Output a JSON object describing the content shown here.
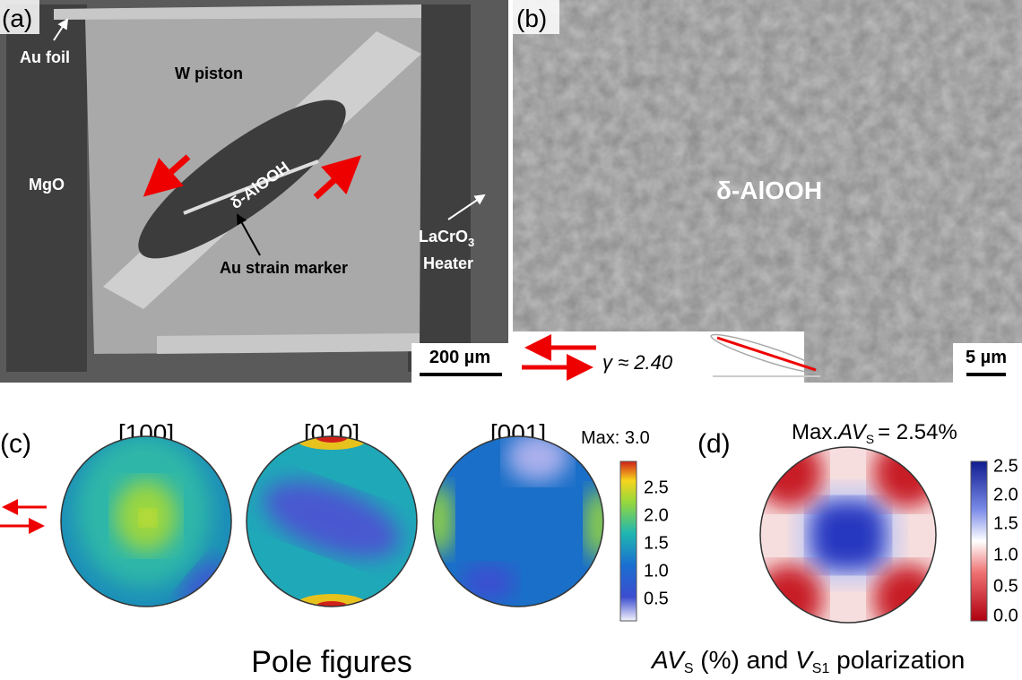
{
  "panel_a": {
    "label": "(a)",
    "annotations": [
      "Au foil",
      "W piston",
      "MgO",
      "δ-AlOOH",
      "Au strain marker"
    ],
    "heater": {
      "formula": "LaCrO",
      "subscript": "3",
      "text": "Heater"
    },
    "scale_bar": "200 µm"
  },
  "panel_b": {
    "label": "(b)",
    "phase": "δ-AlOOH",
    "shear_strain": "γ ≈ 2.40",
    "scale_bar": "5 µm"
  },
  "panel_c": {
    "label": "(c)",
    "pole_figures": [
      "[100]",
      "[010]",
      "[001]"
    ],
    "max": "Max: 3.0",
    "colorbar_ticks": [
      "2.5",
      "2.0",
      "1.5",
      "1.0",
      "0.5"
    ],
    "caption": "Pole figures"
  },
  "panel_d": {
    "label": "(d)",
    "max": {
      "prefix": "Max.",
      "symbol": "AV",
      "subscript": "S",
      "value": "= 2.54%"
    },
    "colorbar_ticks": [
      "2.5",
      "2.0",
      "1.5",
      "1.0",
      "0.5",
      "0.0"
    ],
    "caption": {
      "symbol": "AV",
      "subscript": "S",
      "middle": " (%) and ",
      "symbol2": "V",
      "subscript2": "S1",
      "suffix": " polarization"
    }
  }
}
